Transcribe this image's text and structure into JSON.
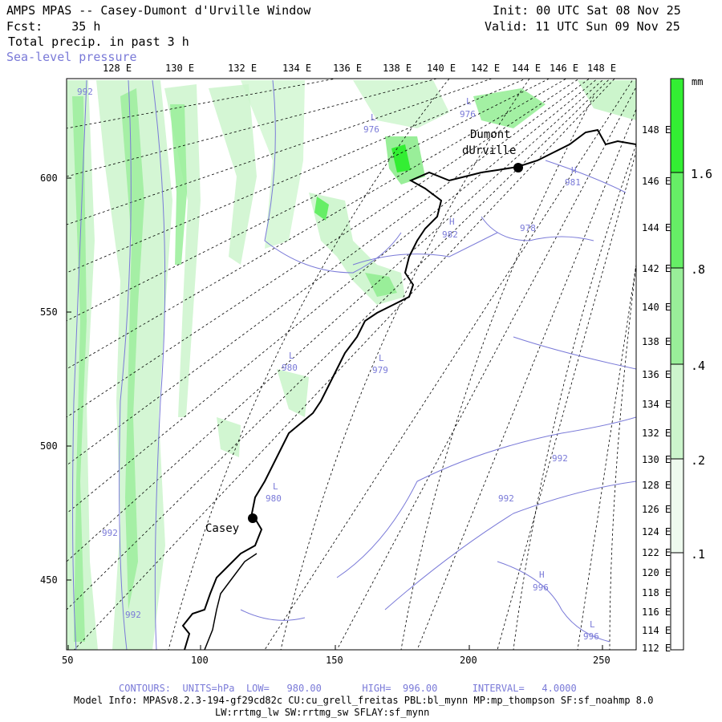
{
  "header": {
    "title": "AMPS MPAS -- Casey-Dumont d'Urville Window",
    "fcst_label": "Fcst:",
    "fcst_value": "35 h",
    "field": "Total precip. in past 3 h",
    "overlay": "Sea-level pressure",
    "init": "Init: 00 UTC Sat 08 Nov 25",
    "valid": "Valid: 11 UTC Sun 09 Nov 25"
  },
  "top_lon_labels": [
    "128 E",
    "130 E",
    "132 E",
    "134 E",
    "136 E",
    "138 E",
    "140 E",
    "142 E",
    "144 E",
    "146 E",
    "148 E"
  ],
  "right_lon_labels": [
    "148 E",
    "146 E",
    "144 E",
    "142 E",
    "140 E",
    "138 E",
    "136 E",
    "134 E",
    "132 E",
    "130 E",
    "128 E",
    "126 E",
    "124 E",
    "122 E",
    "120 E",
    "118 E",
    "116 E",
    "114 E",
    "112 E"
  ],
  "x_ticks": [
    "50",
    "100",
    "150",
    "200",
    "250"
  ],
  "y_ticks": [
    "600",
    "550",
    "500",
    "450"
  ],
  "stations": [
    {
      "name": "Casey"
    },
    {
      "name": "Dumont"
    },
    {
      "name": "dUrville"
    }
  ],
  "pressure_labels": [
    {
      "text": "992"
    },
    {
      "text": "L"
    },
    {
      "text": "976"
    },
    {
      "text": "L"
    },
    {
      "text": "976"
    },
    {
      "text": "H"
    },
    {
      "text": "981"
    },
    {
      "text": "H"
    },
    {
      "text": "982"
    },
    {
      "text": "978"
    },
    {
      "text": "L"
    },
    {
      "text": "980"
    },
    {
      "text": "L"
    },
    {
      "text": "979"
    },
    {
      "text": "L"
    },
    {
      "text": "980"
    },
    {
      "text": "992"
    },
    {
      "text": "992"
    },
    {
      "text": "992"
    },
    {
      "text": "992"
    },
    {
      "text": "H"
    },
    {
      "text": "996"
    },
    {
      "text": "L"
    },
    {
      "text": "996"
    }
  ],
  "colorbar": {
    "unit": "mm",
    "labels": [
      "1.6",
      ".8",
      ".4",
      ".2",
      ".1"
    ],
    "colors": [
      "#33ee33",
      "#66ee66",
      "#99ee99",
      "#ccf5cc",
      "#eefaee",
      "#ffffff"
    ]
  },
  "footer": {
    "contours": "CONTOURS:  UNITS=hPa  LOW=   980.00       HIGH=  996.00      INTERVAL=   4.0000",
    "model_info": "Model Info: MPASv8.2.3-194-gf29cd82c CU:cu_grell_freitas PBL:bl_mynn MP:mp_thompson SF:sf_noahmp 8.0",
    "model_info2": "LW:rrtmg_lw SW:rrtmg_sw SFLAY:sf_mynn"
  },
  "colors": {
    "contour": "#7a7ad8",
    "precip_light": "#ccf5cc",
    "precip_mid": "#99ee99",
    "precip_strong": "#33ee33"
  }
}
